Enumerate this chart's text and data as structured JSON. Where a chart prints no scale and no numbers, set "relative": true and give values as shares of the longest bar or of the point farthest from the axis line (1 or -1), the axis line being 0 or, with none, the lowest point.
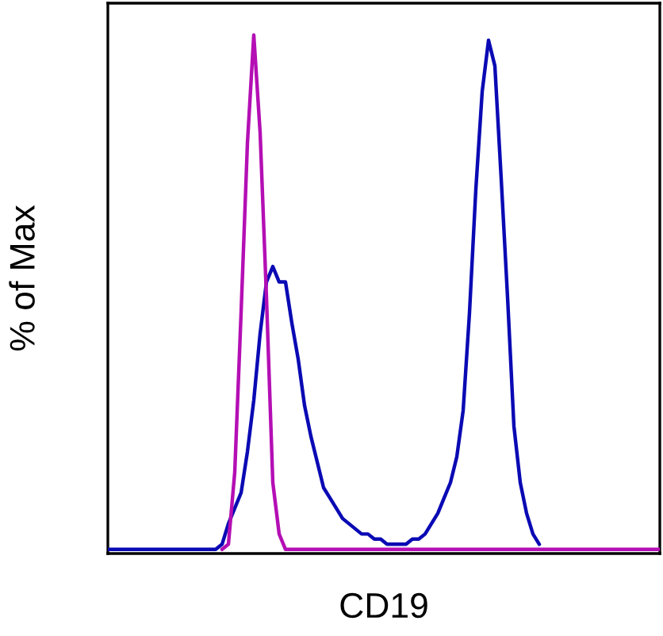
{
  "chart_data": {
    "type": "line",
    "xlabel": "CD19",
    "ylabel": "% of Max",
    "relative": true,
    "categories": [
      null,
      null,
      null,
      null,
      null,
      null,
      null,
      null,
      null,
      null,
      null,
      null,
      null,
      null,
      null,
      null,
      null,
      null,
      null,
      null,
      null,
      null,
      null,
      null,
      null,
      null,
      null,
      null,
      null,
      null,
      null,
      null,
      null,
      null,
      null,
      null,
      null,
      null,
      null,
      null,
      null,
      null,
      null,
      null,
      null,
      null,
      null,
      null,
      null,
      null,
      null,
      null,
      null,
      null,
      null,
      null,
      null,
      null,
      null,
      null,
      null,
      null,
      null,
      null,
      null,
      null,
      null,
      null,
      null,
      null,
      null,
      null,
      null,
      null,
      null,
      null,
      null,
      null,
      null,
      null,
      null,
      null,
      null,
      null,
      null,
      null,
      null,
      null
    ],
    "series": [
      {
        "color": "#0a0ab4",
        "values": [
          0,
          0,
          0,
          0,
          0,
          0,
          0,
          0,
          0,
          0,
          0,
          0,
          0,
          0,
          0,
          0,
          0,
          0,
          0.01,
          0.05,
          0.08,
          0.11,
          0.19,
          0.29,
          0.42,
          0.52,
          0.55,
          0.52,
          0.52,
          0.44,
          0.37,
          0.28,
          0.22,
          0.17,
          0.12,
          0.1,
          0.08,
          0.06,
          0.05,
          0.04,
          0.03,
          0.03,
          0.02,
          0.02,
          0.01,
          0.01,
          0.01,
          0.01,
          0.02,
          0.02,
          0.03,
          0.05,
          0.07,
          0.1,
          0.13,
          0.18,
          0.27,
          0.46,
          0.7,
          0.89,
          0.99,
          0.94,
          0.72,
          0.49,
          0.24,
          0.13,
          0.07,
          0.03,
          0.01,
          null,
          null,
          null,
          null,
          null,
          null,
          null,
          null,
          null,
          null,
          null,
          null,
          null,
          null,
          null,
          null,
          null,
          null,
          null
        ]
      },
      {
        "color": "#b40fb4",
        "values": [
          null,
          null,
          null,
          null,
          null,
          null,
          null,
          null,
          null,
          null,
          null,
          null,
          null,
          null,
          null,
          null,
          null,
          null,
          0,
          0.01,
          0.15,
          0.46,
          0.79,
          1,
          0.81,
          0.49,
          0.13,
          0.03,
          0,
          0,
          0,
          0,
          0,
          0,
          0,
          0,
          0,
          0,
          0,
          0,
          0,
          0,
          0,
          0,
          0,
          0,
          0,
          0,
          0,
          0,
          0,
          0,
          0,
          0,
          0,
          0,
          0,
          0,
          0,
          0,
          0,
          0,
          0,
          0,
          0,
          0,
          0,
          0,
          0,
          0,
          0,
          0,
          0,
          0,
          0,
          0,
          0,
          0,
          0,
          0,
          0,
          0,
          0,
          0,
          0,
          0,
          0,
          0
        ]
      }
    ]
  }
}
